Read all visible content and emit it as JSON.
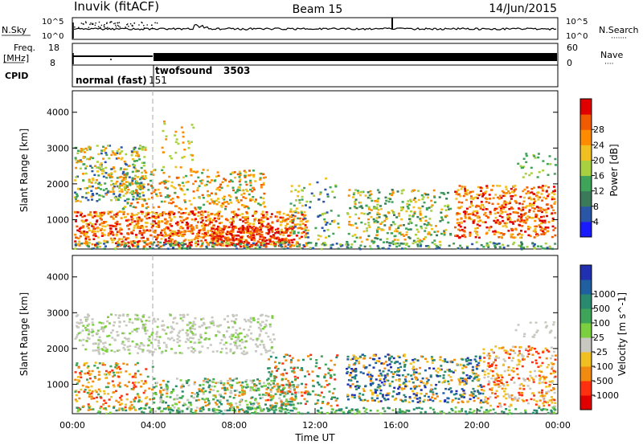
{
  "header": {
    "title": "Inuvik (fitACF)",
    "beam": "Beam 15",
    "date": "14/Jun/2015"
  },
  "top_panels": {
    "nsky_label": "N.Sky",
    "nsky_ticks": [
      "10^5",
      "10^0"
    ],
    "nsearch_label": "N.Search",
    "nsearch_ticks": [
      "10^5",
      "10^0"
    ],
    "freq_label": "Freq.",
    "freq_unit": "[MHz]",
    "freq_ticks": [
      "18",
      "8"
    ],
    "nave_label": "Nave",
    "nave_ticks": [
      "60",
      "0"
    ],
    "cpid_label": "CPID",
    "cpid_segments": [
      {
        "name": "normal (fast)",
        "id": "151"
      },
      {
        "name": "twofsound",
        "id": "3503"
      }
    ]
  },
  "chart_data": [
    {
      "type": "heatmap",
      "name": "power-panel",
      "xlabel": "",
      "ylabel": "Slant Range [km]",
      "yticks": [
        "1000",
        "2000",
        "3000",
        "4000"
      ],
      "ylim": [
        180,
        4600
      ],
      "colorbar_label": "Power [dB]",
      "colorbar_ticks": [
        "4",
        "8",
        "12",
        "16",
        "20",
        "24",
        "28"
      ],
      "colorbar_colors": [
        "#1a1aff",
        "#2a56a8",
        "#3a7a5a",
        "#3fa35a",
        "#a8d040",
        "#f0c020",
        "#ff8c00",
        "#f05a00",
        "#e00000"
      ]
    },
    {
      "type": "heatmap",
      "name": "velocity-panel",
      "xlabel": "Time UT",
      "ylabel": "Slant Range [km]",
      "yticks": [
        "1000",
        "2000",
        "3000",
        "4000"
      ],
      "ylim": [
        180,
        4600
      ],
      "xticks": [
        "00:00",
        "04:00",
        "08:00",
        "12:00",
        "16:00",
        "20:00",
        "00:00"
      ],
      "colorbar_label": "Velocity  [m s^-1]",
      "colorbar_ticks": [
        "1000",
        "500",
        "100",
        "25",
        "-25",
        "-100",
        "-500",
        "-1000"
      ],
      "colorbar_colors": [
        "#2030b0",
        "#2060a0",
        "#2a8a70",
        "#3fa35a",
        "#7cd040",
        "#c8c8c0",
        "#f0c020",
        "#f08a10",
        "#ff3010",
        "#e00000"
      ]
    }
  ]
}
